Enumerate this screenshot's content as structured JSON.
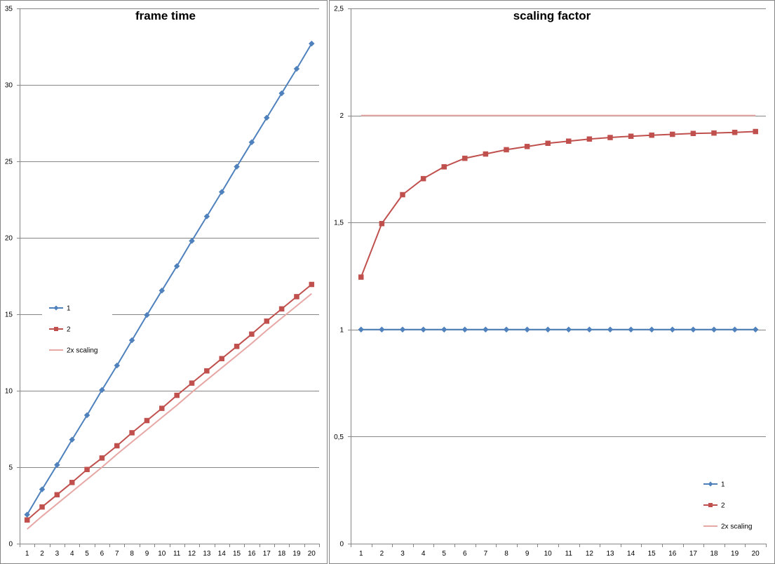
{
  "chart_data": [
    {
      "type": "line",
      "title": "frame time",
      "xlabel": "",
      "ylabel": "",
      "categories": [
        "1",
        "2",
        "3",
        "4",
        "5",
        "6",
        "7",
        "8",
        "9",
        "10",
        "11",
        "12",
        "13",
        "14",
        "15",
        "16",
        "17",
        "18",
        "19",
        "20"
      ],
      "ylim": [
        0,
        35
      ],
      "yticks": [
        0,
        5,
        10,
        15,
        20,
        25,
        30,
        35
      ],
      "ytick_labels": [
        "0",
        "5",
        "10",
        "15",
        "20",
        "25",
        "30",
        "35"
      ],
      "grid": true,
      "legend_position": "left",
      "series": [
        {
          "name": "1",
          "color": "#4f81bd",
          "marker": "diamond",
          "values": [
            1.9,
            3.55,
            5.15,
            6.8,
            8.4,
            10.05,
            11.65,
            13.3,
            14.95,
            16.55,
            18.15,
            19.8,
            21.4,
            23.0,
            24.65,
            26.25,
            27.85,
            29.45,
            31.05,
            32.7
          ]
        },
        {
          "name": "2",
          "color": "#c0504d",
          "marker": "square",
          "values": [
            1.55,
            2.4,
            3.2,
            4.0,
            4.85,
            5.6,
            6.4,
            7.25,
            8.05,
            8.85,
            9.7,
            10.5,
            11.3,
            12.1,
            12.9,
            13.7,
            14.55,
            15.35,
            16.15,
            16.95
          ]
        },
        {
          "name": "2x scaling",
          "color": "#e6a7a5",
          "marker": "none",
          "values": [
            0.95,
            1.8,
            2.6,
            3.4,
            4.2,
            5.0,
            5.85,
            6.65,
            7.45,
            8.25,
            9.05,
            9.9,
            10.7,
            11.5,
            12.3,
            13.1,
            13.95,
            14.75,
            15.55,
            16.35
          ]
        }
      ]
    },
    {
      "type": "line",
      "title": "scaling factor",
      "xlabel": "",
      "ylabel": "",
      "categories": [
        "1",
        "2",
        "3",
        "4",
        "5",
        "6",
        "7",
        "8",
        "9",
        "10",
        "11",
        "12",
        "13",
        "14",
        "15",
        "16",
        "17",
        "18",
        "19",
        "20"
      ],
      "ylim": [
        0,
        2.5
      ],
      "yticks": [
        0,
        0.5,
        1,
        1.5,
        2,
        2.5
      ],
      "ytick_labels": [
        "0",
        "0,5",
        "1",
        "1,5",
        "2",
        "2,5"
      ],
      "grid": true,
      "legend_position": "bottom-right",
      "series": [
        {
          "name": "1",
          "color": "#4f81bd",
          "marker": "diamond",
          "values": [
            1,
            1,
            1,
            1,
            1,
            1,
            1,
            1,
            1,
            1,
            1,
            1,
            1,
            1,
            1,
            1,
            1,
            1,
            1,
            1
          ]
        },
        {
          "name": "2",
          "color": "#c0504d",
          "marker": "square",
          "values": [
            1.245,
            1.495,
            1.63,
            1.705,
            1.76,
            1.8,
            1.82,
            1.84,
            1.855,
            1.87,
            1.88,
            1.89,
            1.897,
            1.903,
            1.908,
            1.912,
            1.916,
            1.918,
            1.921,
            1.925
          ]
        },
        {
          "name": "2x scaling",
          "color": "#e6a7a5",
          "marker": "none",
          "values": [
            2,
            2,
            2,
            2,
            2,
            2,
            2,
            2,
            2,
            2,
            2,
            2,
            2,
            2,
            2,
            2,
            2,
            2,
            2,
            2
          ]
        }
      ]
    }
  ]
}
